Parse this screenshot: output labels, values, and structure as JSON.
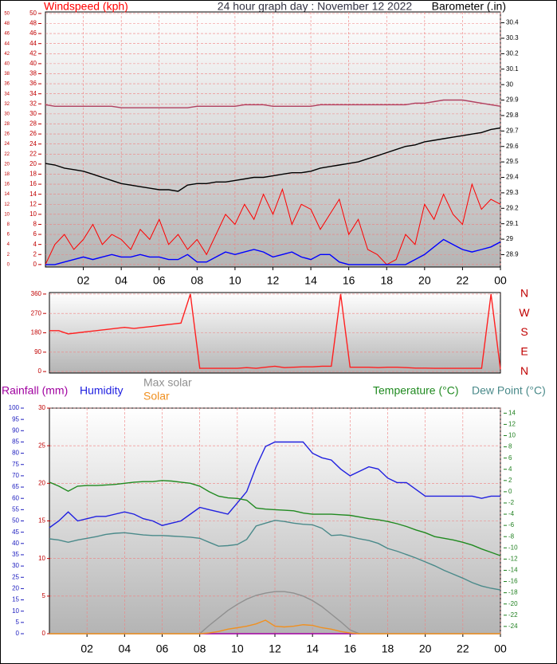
{
  "chart_data": [
    {
      "type": "line",
      "title": "24 hour graph day : November 12 2022",
      "x": [
        0,
        0.5,
        1,
        1.5,
        2,
        2.5,
        3,
        3.5,
        4,
        4.5,
        5,
        5.5,
        6,
        6.5,
        7,
        7.5,
        8,
        8.5,
        9,
        9.5,
        10,
        10.5,
        11,
        11.5,
        12,
        12.5,
        13,
        13.5,
        14,
        14.5,
        15,
        15.5,
        16,
        16.5,
        17,
        17.5,
        18,
        18.5,
        19,
        19.5,
        20,
        20.5,
        21,
        21.5,
        22,
        22.5,
        23,
        23.5,
        24
      ],
      "xlim": [
        0,
        24
      ],
      "xticks": [
        {
          "value": 2,
          "label": "02"
        },
        {
          "value": 4,
          "label": "04"
        },
        {
          "value": 6,
          "label": "06"
        },
        {
          "value": 8,
          "label": "08"
        },
        {
          "value": 10,
          "label": "10"
        },
        12,
        14,
        16,
        18,
        20,
        22,
        {
          "value": 24,
          "label": "00"
        }
      ],
      "ylim": [
        -0.5,
        50.3
      ],
      "yticks": [
        0,
        2,
        4,
        6,
        8,
        10,
        12,
        14,
        16,
        18,
        20,
        22,
        24,
        26,
        28,
        30,
        32,
        34,
        36,
        38,
        40,
        42,
        44,
        46,
        48,
        50
      ],
      "y2lim": [
        28.82,
        30.47
      ],
      "y2ticks": [
        28.9,
        29,
        29.1,
        29.2,
        29.3,
        29.4,
        29.5,
        29.6,
        29.7,
        29.8,
        29.9,
        30,
        30.1,
        30.2,
        30.3,
        30.4
      ],
      "grid": true,
      "series": [
        {
          "name": "Windspeed (kph)",
          "color": "#ff0000",
          "values": [
            0,
            4,
            6,
            3,
            5,
            8,
            4,
            6,
            5,
            3,
            7,
            5,
            9,
            4,
            6,
            3,
            5,
            2,
            6,
            10,
            8,
            12,
            9,
            14,
            10,
            15,
            8,
            12,
            11,
            7,
            10,
            13,
            6,
            9,
            3,
            2,
            0,
            1,
            6,
            4,
            12,
            9,
            14,
            10,
            8,
            16,
            11,
            13,
            12
          ]
        },
        {
          "color": "#0000ff",
          "values": [
            0,
            0,
            0.5,
            1,
            1.5,
            1,
            1.5,
            2,
            1.5,
            1.5,
            2,
            1.5,
            1.5,
            1,
            1,
            2,
            0.5,
            0.5,
            1.5,
            2.5,
            2,
            2.5,
            3,
            2.5,
            1.5,
            2,
            2.5,
            1.5,
            1,
            2,
            2,
            0.5,
            0,
            0,
            0,
            0,
            0,
            0,
            0,
            1,
            2,
            3.5,
            5,
            4,
            3,
            2.5,
            3,
            3.5,
            4.5
          ]
        },
        {
          "name": "Barometer (.in)",
          "color": "#000000",
          "axis": "y2",
          "values": [
            29.49,
            29.48,
            29.46,
            29.45,
            29.44,
            29.42,
            29.4,
            29.38,
            29.36,
            29.35,
            29.34,
            29.33,
            29.32,
            29.32,
            29.31,
            29.35,
            29.36,
            29.36,
            29.37,
            29.37,
            29.38,
            29.39,
            29.4,
            29.4,
            29.41,
            29.42,
            29.43,
            29.43,
            29.44,
            29.46,
            29.47,
            29.48,
            29.49,
            29.5,
            29.52,
            29.54,
            29.56,
            29.58,
            29.6,
            29.61,
            29.63,
            29.64,
            29.65,
            29.66,
            29.67,
            29.68,
            29.69,
            29.71,
            29.72
          ]
        },
        {
          "color": "#b04060",
          "axis": "y2",
          "values": [
            29.87,
            29.86,
            29.86,
            29.86,
            29.86,
            29.86,
            29.86,
            29.86,
            29.85,
            29.85,
            29.85,
            29.85,
            29.85,
            29.85,
            29.85,
            29.85,
            29.86,
            29.86,
            29.86,
            29.86,
            29.86,
            29.87,
            29.87,
            29.87,
            29.86,
            29.86,
            29.86,
            29.86,
            29.86,
            29.87,
            29.87,
            29.87,
            29.87,
            29.87,
            29.87,
            29.87,
            29.87,
            29.87,
            29.87,
            29.88,
            29.88,
            29.89,
            29.9,
            29.9,
            29.9,
            29.89,
            29.88,
            29.87,
            29.86
          ]
        }
      ]
    },
    {
      "type": "line",
      "x": [
        0,
        0.5,
        1,
        1.5,
        2,
        2.5,
        3,
        3.5,
        4,
        4.5,
        5,
        5.5,
        6,
        6.5,
        7,
        7.5,
        8,
        8.5,
        9,
        9.5,
        10,
        10.5,
        11,
        11.5,
        12,
        12.5,
        13,
        13.5,
        14,
        14.5,
        15,
        15.5,
        16,
        16.5,
        17,
        17.5,
        18,
        18.5,
        19,
        19.5,
        20,
        20.5,
        21,
        21.5,
        22,
        22.5,
        23,
        23.5,
        24
      ],
      "xlim": [
        0,
        24
      ],
      "ylim": [
        -7,
        367
      ],
      "yticks": [
        0,
        90,
        180,
        270,
        360
      ],
      "y2lim": [
        -7,
        367
      ],
      "y2ticks": [
        {
          "value": 360,
          "label": "N"
        },
        {
          "value": 270,
          "label": "W"
        },
        {
          "value": 180,
          "label": "S"
        },
        {
          "value": 90,
          "label": "E"
        },
        {
          "value": 0,
          "label": "N"
        }
      ],
      "grid": true,
      "series": [
        {
          "color": "#ff2020",
          "values": [
            190,
            190,
            175,
            180,
            185,
            190,
            195,
            200,
            205,
            200,
            205,
            210,
            215,
            220,
            225,
            360,
            15,
            15,
            15,
            15,
            15,
            18,
            15,
            20,
            25,
            18,
            20,
            22,
            22,
            25,
            25,
            360,
            20,
            20,
            20,
            18,
            20,
            20,
            18,
            16,
            16,
            15,
            15,
            15,
            15,
            15,
            15,
            360,
            10
          ]
        }
      ]
    },
    {
      "type": "line",
      "x": [
        0,
        0.5,
        1,
        1.5,
        2,
        2.5,
        3,
        3.5,
        4,
        4.5,
        5,
        5.5,
        6,
        6.5,
        7,
        7.5,
        8,
        8.5,
        9,
        9.5,
        10,
        10.5,
        11,
        11.5,
        12,
        12.5,
        13,
        13.5,
        14,
        14.5,
        15,
        15.5,
        16,
        16.5,
        17,
        17.5,
        18,
        18.5,
        19,
        19.5,
        20,
        20.5,
        21,
        21.5,
        22,
        22.5,
        23,
        23.5,
        24
      ],
      "xlim": [
        0,
        24
      ],
      "xticks": [
        {
          "value": 2,
          "label": "02"
        },
        {
          "value": 4,
          "label": "04"
        },
        {
          "value": 6,
          "label": "06"
        },
        {
          "value": 8,
          "label": "08"
        },
        {
          "value": 10,
          "label": "10"
        },
        12,
        14,
        16,
        18,
        20,
        22,
        {
          "value": 24,
          "label": "00"
        }
      ],
      "ylim": [
        0,
        30
      ],
      "yticks": [
        0,
        5,
        10,
        15,
        20,
        25,
        30
      ],
      "y3lim": [
        0,
        100
      ],
      "y3ticks": [
        0,
        5,
        10,
        15,
        20,
        25,
        30,
        35,
        40,
        45,
        50,
        55,
        60,
        65,
        70,
        75,
        80,
        85,
        90,
        95,
        100
      ],
      "y2lim": [
        -25.3,
        14.9
      ],
      "y2ticks": [
        -24,
        -22,
        -20,
        -18,
        -16,
        -14,
        -12,
        -10,
        -8,
        -6,
        -4,
        -2,
        0,
        2,
        4,
        6,
        8,
        10,
        12,
        14
      ],
      "grid": true,
      "series": [
        {
          "name": "Rainfall (mm)",
          "color": "#a000a0",
          "values": [
            null,
            null,
            null,
            null,
            null,
            null,
            null,
            null,
            null,
            null,
            null,
            null,
            null,
            null,
            null,
            null,
            0,
            0,
            0,
            0,
            0,
            0,
            0,
            0,
            0,
            0,
            0,
            0,
            0,
            0,
            0,
            0,
            0,
            0,
            null,
            null,
            null,
            null,
            null,
            null,
            null,
            null,
            null,
            null,
            null,
            null,
            null,
            null,
            null
          ]
        },
        {
          "name": "Humidity",
          "color": "#2020e0",
          "axis": "y3",
          "values": [
            47,
            50,
            54,
            50,
            51,
            52,
            52,
            53,
            54,
            53,
            51,
            50,
            48,
            49,
            50,
            53,
            56,
            55,
            54,
            53,
            58,
            63,
            74,
            83,
            85,
            85,
            85,
            85,
            80,
            78,
            77,
            73,
            70,
            72,
            74,
            73,
            69,
            67,
            67,
            64,
            61,
            61,
            61,
            61,
            61,
            61,
            60,
            61,
            61
          ]
        },
        {
          "name": "Max solar",
          "color": "#909090",
          "values": [
            0,
            0,
            0,
            0,
            0,
            0,
            0,
            0,
            0,
            0,
            0,
            0,
            0,
            0,
            0,
            0,
            0,
            1.1,
            2.1,
            3.1,
            3.9,
            4.6,
            5.1,
            5.4,
            5.6,
            5.6,
            5.4,
            5,
            4.4,
            3.6,
            2.6,
            1.6,
            0.5,
            0,
            0,
            0,
            0,
            0,
            0,
            0,
            0,
            0,
            0,
            0,
            0,
            0,
            0,
            0,
            0
          ]
        },
        {
          "name": "Solar",
          "color": "#f09020",
          "values": [
            0,
            0,
            0,
            0,
            0,
            0,
            0,
            0,
            0,
            0,
            0,
            0,
            0,
            0,
            0,
            0,
            0,
            0.1,
            0.3,
            0.6,
            0.8,
            1,
            1.3,
            1.8,
            1,
            0.9,
            1,
            1.2,
            1.1,
            0.8,
            0.6,
            0.3,
            0.1,
            0,
            0,
            0,
            0,
            0,
            0,
            0,
            0,
            0,
            0,
            0,
            0,
            0,
            0,
            0,
            0
          ]
        },
        {
          "name": "Temperature (°C)",
          "color": "#208a20",
          "axis": "y2",
          "values": [
            1.7,
            1,
            0.1,
            1,
            1.1,
            1.1,
            1.2,
            1.3,
            1.5,
            1.7,
            1.8,
            1.8,
            2,
            1.9,
            1.7,
            1.5,
            1,
            0,
            -0.8,
            -1.1,
            -1.2,
            -1.5,
            -2.9,
            -3.1,
            -3.2,
            -3.3,
            -3.4,
            -3.8,
            -4,
            -4,
            -4,
            -4.1,
            -4.2,
            -4.5,
            -4.8,
            -5,
            -5.3,
            -5.7,
            -6.2,
            -6.8,
            -7.3,
            -8,
            -8.3,
            -8.6,
            -9,
            -9.5,
            -10.2,
            -10.8,
            -11.4
          ]
        },
        {
          "name": "Dew Point (°C)",
          "color": "#4a8a8a",
          "axis": "y2",
          "values": [
            -8.4,
            -8.6,
            -9,
            -8.6,
            -8.3,
            -8,
            -7.6,
            -7.4,
            -7.3,
            -7.5,
            -7.7,
            -7.8,
            -7.8,
            -7.9,
            -8,
            -8.1,
            -8.3,
            -9,
            -9.7,
            -9.6,
            -9.4,
            -8.5,
            -6.1,
            -5.6,
            -5.1,
            -5.3,
            -5.6,
            -5.8,
            -5.9,
            -6.5,
            -7.8,
            -7.7,
            -8,
            -8.4,
            -8.7,
            -9.2,
            -10.1,
            -10.6,
            -11.2,
            -11.8,
            -12.5,
            -13.2,
            -14,
            -14.7,
            -15.4,
            -16.2,
            -16.8,
            -17.2,
            -17.5
          ]
        }
      ]
    }
  ]
}
